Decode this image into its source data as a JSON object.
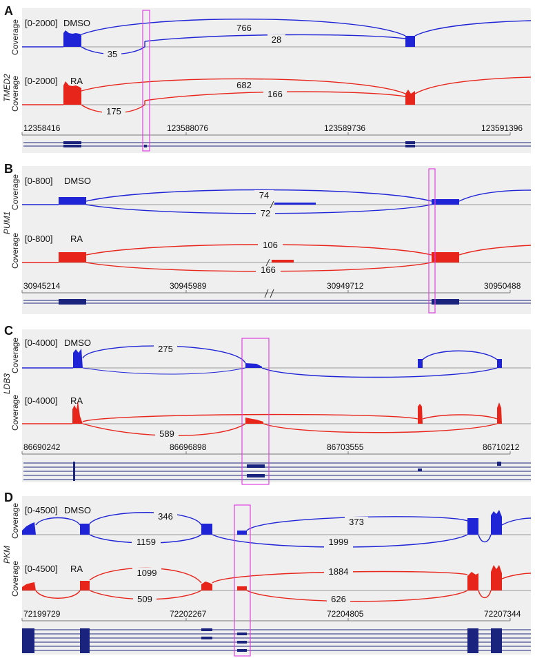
{
  "coverage_label": "Coverage",
  "panels": [
    {
      "letter": "A",
      "gene": "TMED2",
      "tracks": [
        {
          "range": "[0-2000]",
          "condition": "DMSO",
          "color": "#1f24d6",
          "junctions": [
            {
              "label": "766"
            },
            {
              "label": "28"
            },
            {
              "label": "35"
            }
          ]
        },
        {
          "range": "[0-2000]",
          "condition": "RA",
          "color": "#e8251b",
          "junctions": [
            {
              "label": "682"
            },
            {
              "label": "166"
            },
            {
              "label": "175"
            }
          ]
        }
      ],
      "positions": [
        "12358416",
        "123588076",
        "123589736",
        "123591396"
      ]
    },
    {
      "letter": "B",
      "gene": "PUM1",
      "tracks": [
        {
          "range": "[0-800]",
          "condition": "DMSO",
          "color": "#1f24d6",
          "junctions": [
            {
              "label": "74"
            },
            {
              "label": "72"
            }
          ]
        },
        {
          "range": "[0-800]",
          "condition": "RA",
          "color": "#e8251b",
          "junctions": [
            {
              "label": "106"
            },
            {
              "label": "166"
            }
          ]
        }
      ],
      "positions": [
        "30945214",
        "30945989",
        "30949712",
        "30950488"
      ]
    },
    {
      "letter": "C",
      "gene": "LDB3",
      "tracks": [
        {
          "range": "[0-4000]",
          "condition": "DMSO",
          "color": "#1f24d6",
          "junctions": [
            {
              "label": "275"
            }
          ]
        },
        {
          "range": "[0-4000]",
          "condition": "RA",
          "color": "#e8251b",
          "junctions": [
            {
              "label": "589"
            }
          ]
        }
      ],
      "positions": [
        "86690242",
        "86696898",
        "86703555",
        "86710212"
      ]
    },
    {
      "letter": "D",
      "gene": "PKM",
      "tracks": [
        {
          "range": "[0-4500]",
          "condition": "DMSO",
          "color": "#1f24d6",
          "junctions": [
            {
              "label": "346"
            },
            {
              "label": "373"
            },
            {
              "label": "1159"
            },
            {
              "label": "1999"
            }
          ]
        },
        {
          "range": "[0-4500]",
          "condition": "RA",
          "color": "#e8251b",
          "junctions": [
            {
              "label": "1099"
            },
            {
              "label": "1884"
            },
            {
              "label": "509"
            },
            {
              "label": "626"
            }
          ]
        }
      ],
      "positions": [
        "72199729",
        "72202267",
        "72204805",
        "72207344"
      ]
    }
  ],
  "colors": {
    "dmso": "#1f24d6",
    "ra": "#e8251b",
    "highlight": "#e040e0",
    "annotation": "#1a237e",
    "panel_bg": "#efefef"
  }
}
